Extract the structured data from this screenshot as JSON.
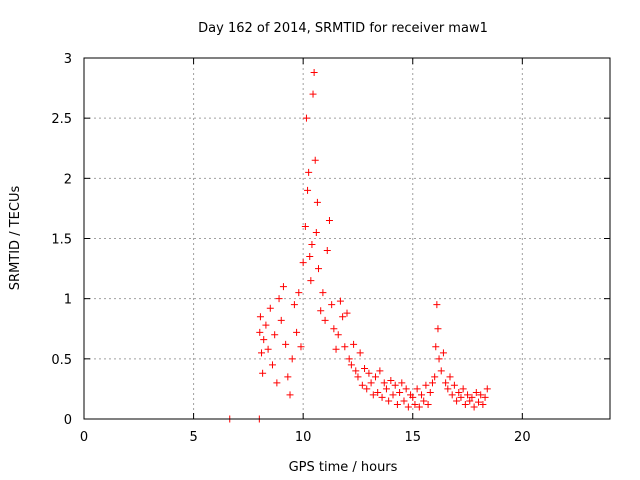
{
  "chart_data": {
    "type": "scatter",
    "title": "Day 162 of 2014, SRMTID for receiver maw1",
    "xlabel": "GPS time / hours",
    "ylabel": "SRMTID / TECUs",
    "xlim": [
      0,
      24
    ],
    "ylim": [
      0,
      3
    ],
    "grid": true,
    "marker": "+",
    "color": "#ff0000",
    "xticks": [
      0,
      5,
      10,
      15,
      20
    ],
    "yticks": [
      0,
      0.5,
      1,
      1.5,
      2,
      2.5,
      3
    ],
    "xtick_labels": [
      "0",
      "5",
      "10",
      "15",
      "20"
    ],
    "ytick_labels": [
      "0",
      "0.5",
      "1",
      "1.5",
      "2",
      "2.5",
      "3"
    ],
    "series": [
      {
        "name": "maw1",
        "x": [
          6.65,
          8.0,
          8.02,
          8.05,
          8.1,
          8.15,
          8.2,
          8.3,
          8.4,
          8.5,
          8.6,
          8.7,
          8.8,
          8.9,
          9.0,
          9.1,
          9.2,
          9.3,
          9.4,
          9.5,
          9.6,
          9.7,
          9.8,
          9.9,
          10.0,
          10.1,
          10.15,
          10.2,
          10.25,
          10.3,
          10.35,
          10.4,
          10.45,
          10.5,
          10.55,
          10.6,
          10.65,
          10.7,
          10.8,
          10.9,
          11.0,
          11.1,
          11.2,
          11.3,
          11.4,
          11.5,
          11.6,
          11.7,
          11.8,
          11.9,
          12.0,
          12.1,
          12.2,
          12.3,
          12.4,
          12.5,
          12.6,
          12.7,
          12.8,
          12.9,
          13.0,
          13.1,
          13.2,
          13.3,
          13.4,
          13.5,
          13.6,
          13.7,
          13.8,
          13.9,
          14.0,
          14.1,
          14.2,
          14.3,
          14.4,
          14.5,
          14.6,
          14.7,
          14.8,
          14.9,
          15.0,
          15.1,
          15.2,
          15.3,
          15.4,
          15.5,
          15.6,
          15.7,
          15.8,
          15.9,
          16.0,
          16.05,
          16.1,
          16.15,
          16.2,
          16.3,
          16.4,
          16.5,
          16.6,
          16.7,
          16.8,
          16.9,
          17.0,
          17.1,
          17.2,
          17.3,
          17.4,
          17.5,
          17.6,
          17.7,
          17.8,
          17.9,
          18.0,
          18.1,
          18.2,
          18.3,
          18.4
        ],
        "y": [
          0.0,
          0.0,
          0.72,
          0.85,
          0.55,
          0.38,
          0.66,
          0.78,
          0.58,
          0.92,
          0.45,
          0.7,
          0.3,
          1.0,
          0.82,
          1.1,
          0.62,
          0.35,
          0.2,
          0.5,
          0.95,
          0.72,
          1.05,
          0.6,
          1.3,
          1.6,
          2.5,
          1.9,
          2.05,
          1.35,
          1.15,
          1.45,
          2.7,
          2.88,
          2.15,
          1.55,
          1.8,
          1.25,
          0.9,
          1.05,
          0.82,
          1.4,
          1.65,
          0.95,
          0.75,
          0.58,
          0.7,
          0.98,
          0.85,
          0.6,
          0.88,
          0.5,
          0.45,
          0.62,
          0.4,
          0.35,
          0.55,
          0.28,
          0.42,
          0.25,
          0.38,
          0.3,
          0.2,
          0.35,
          0.22,
          0.4,
          0.18,
          0.3,
          0.25,
          0.15,
          0.32,
          0.2,
          0.28,
          0.12,
          0.22,
          0.3,
          0.15,
          0.25,
          0.1,
          0.2,
          0.18,
          0.12,
          0.25,
          0.1,
          0.2,
          0.15,
          0.28,
          0.12,
          0.22,
          0.3,
          0.35,
          0.6,
          0.95,
          0.75,
          0.5,
          0.4,
          0.55,
          0.3,
          0.25,
          0.35,
          0.2,
          0.28,
          0.15,
          0.22,
          0.18,
          0.25,
          0.12,
          0.2,
          0.15,
          0.18,
          0.1,
          0.22,
          0.14,
          0.2,
          0.12,
          0.18,
          0.25
        ]
      }
    ]
  }
}
